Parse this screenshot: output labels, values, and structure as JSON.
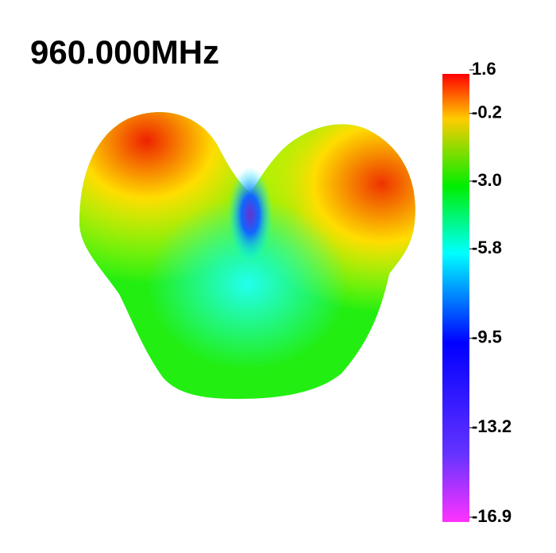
{
  "chart_data": {
    "type": "radiation-pattern",
    "title": "960.000MHz",
    "clim": [
      -16.9,
      1.6
    ],
    "cticks": [
      1.6,
      -0.2,
      {
        "value": -3,
        "label": "-3.0"
      },
      -5.8,
      -9.5,
      -13.2,
      -16.9
    ]
  }
}
